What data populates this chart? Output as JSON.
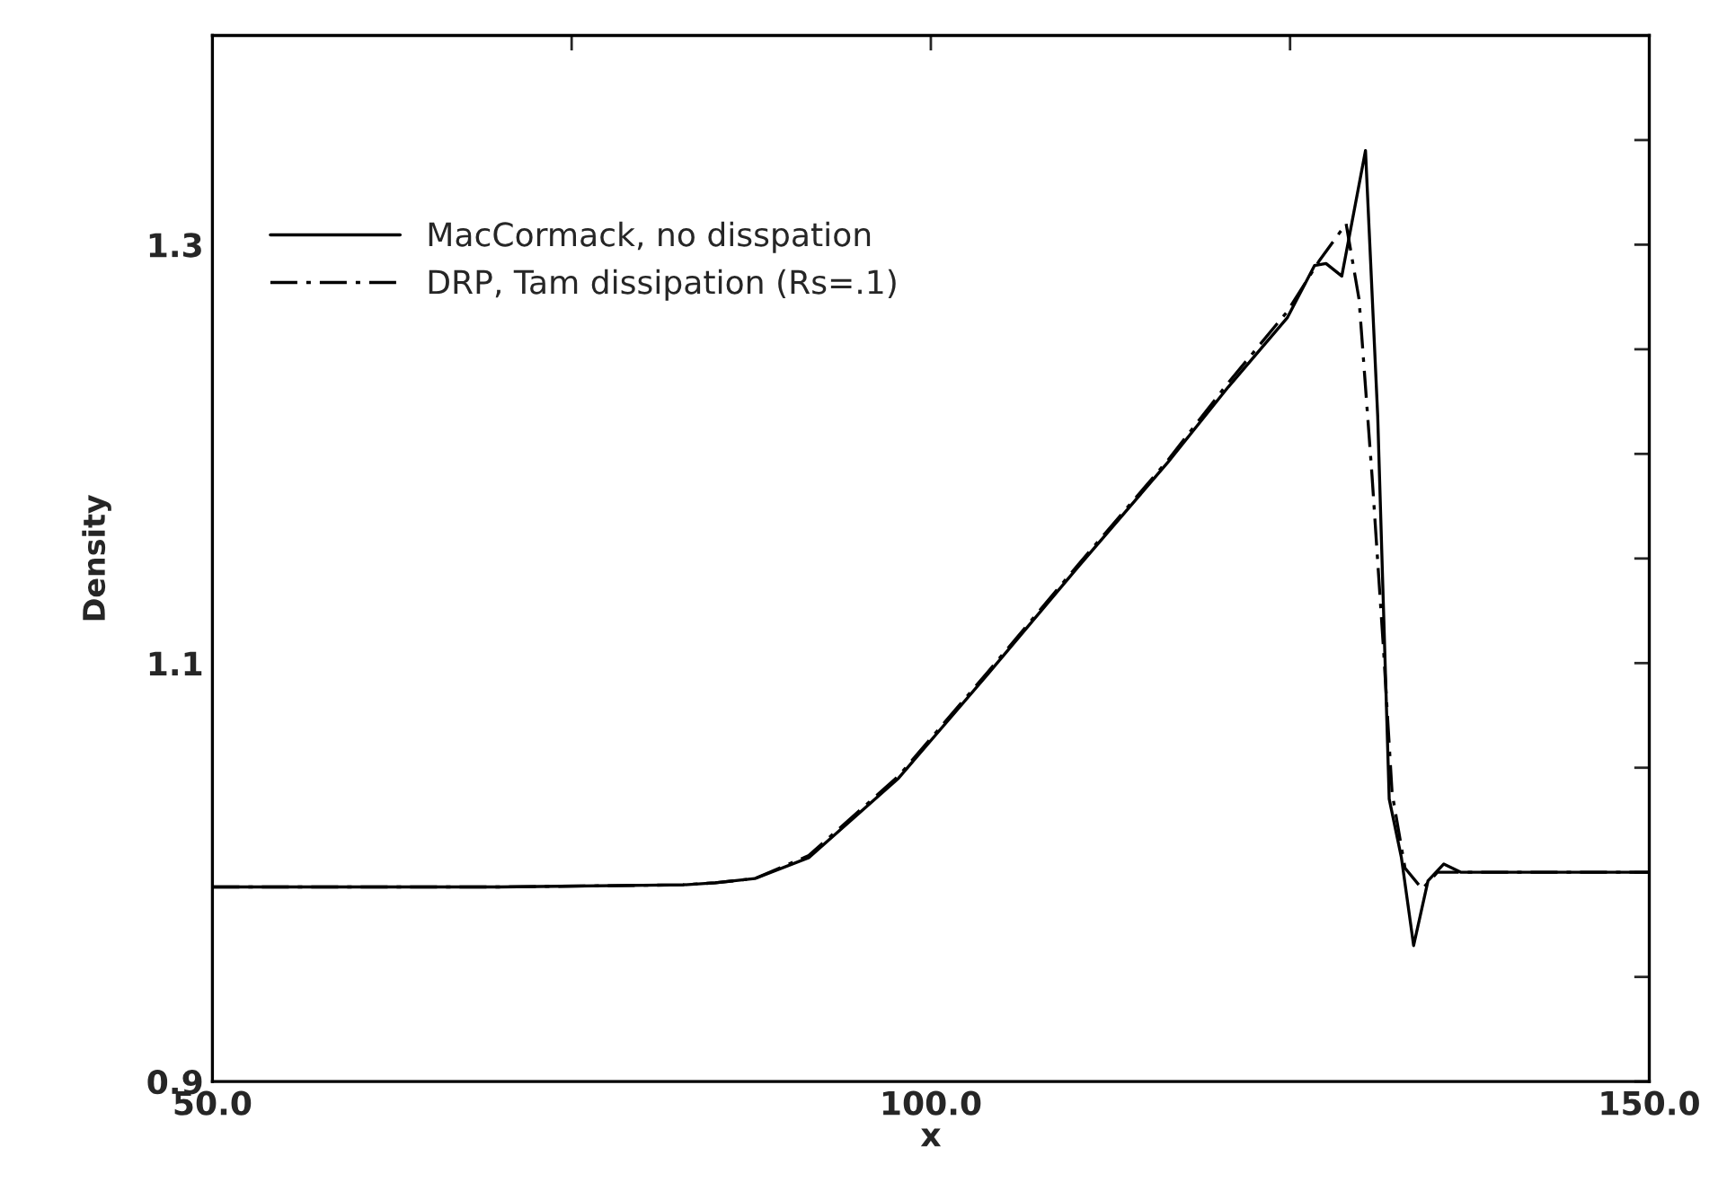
{
  "chart_data": {
    "type": "line",
    "xlabel": "x",
    "ylabel": "Density",
    "xlim": [
      50,
      150
    ],
    "xticks": [
      {
        "value": 50,
        "label": "50.0"
      },
      {
        "value": 75,
        "label": null
      },
      {
        "value": 100,
        "label": "100.0"
      },
      {
        "value": 125,
        "label": null
      },
      {
        "value": 150,
        "label": "150.0"
      }
    ],
    "ylim": [
      0.9,
      1.4
    ],
    "yticks": [
      0.9,
      {
        "value": 0.95,
        "label": null
      },
      {
        "value": 1.0,
        "label": null
      },
      {
        "value": 1.05,
        "label": null
      },
      1.1,
      {
        "value": 1.15,
        "label": null
      },
      {
        "value": 1.2,
        "label": null
      },
      {
        "value": 1.25,
        "label": null
      },
      1.3,
      {
        "value": 1.35,
        "label": null
      }
    ],
    "grid": false,
    "legend": "top left",
    "marker": "none",
    "series": [
      {
        "name": "MacCormack, no disspation",
        "color": "#000000",
        "line_style": "solid",
        "x": [
          50,
          70,
          82.75,
          85,
          87.75,
          91.5,
          97.75,
          104,
          110.25,
          116.5,
          120.7,
          124.8,
          126.7,
          127.5,
          128.6,
          130.25,
          131.1,
          131.9,
          132.75,
          133.6,
          134.6,
          135.7,
          136.9,
          150
        ],
        "values": [
          0.993,
          0.993,
          0.994,
          0.995,
          0.997,
          1.007,
          1.045,
          1.095,
          1.146,
          1.196,
          1.232,
          1.265,
          1.29,
          1.291,
          1.285,
          1.345,
          1.218,
          1.035,
          1.007,
          0.965,
          0.996,
          1.004,
          1.0,
          1.0
        ]
      },
      {
        "name": "DRP, Tam dissipation (Rs=.1)",
        "color": "#000000",
        "line_style": "dashed",
        "x": [
          50,
          70,
          82.75,
          85,
          87.75,
          91.5,
          97.75,
          104,
          110.25,
          116.5,
          120.7,
          124.8,
          127.0,
          128.9,
          129.8,
          130.7,
          131.5,
          132.1,
          133.0,
          134.2,
          135.25,
          150
        ],
        "values": [
          0.993,
          0.993,
          0.994,
          0.995,
          0.997,
          1.008,
          1.046,
          1.096,
          1.147,
          1.197,
          1.234,
          1.268,
          1.292,
          1.31,
          1.274,
          1.19,
          1.107,
          1.038,
          1.002,
          0.992,
          1.0,
          1.0
        ]
      }
    ]
  }
}
